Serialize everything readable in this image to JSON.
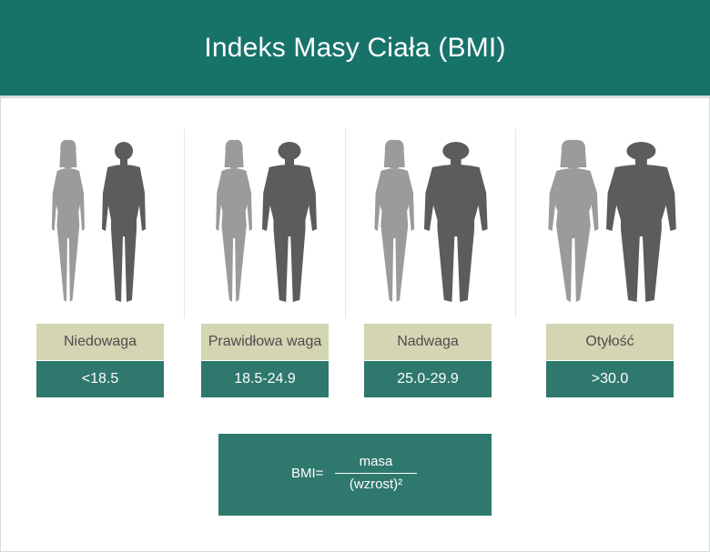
{
  "title": "Indeks Masy Ciała (BMI)",
  "categories": [
    {
      "name": "Niedowaga",
      "range": "<18.5"
    },
    {
      "name": "Prawidłowa waga",
      "range": "18.5-24.9"
    },
    {
      "name": "Nadwaga",
      "range": "25.0-29.9"
    },
    {
      "name": "Otyłość",
      "range": ">30.0"
    }
  ],
  "formula": {
    "lhs": "BMI=",
    "numerator": "masa",
    "denominator": "(wzrost)²"
  },
  "colors": {
    "header": "#17736a",
    "label_bg": "#d4d5b2",
    "range_bg": "#2f786d",
    "female_figure": "#9b9b9b",
    "male_figure": "#5c5c5c"
  },
  "icons": [
    "female-figure-icon",
    "male-figure-icon"
  ]
}
